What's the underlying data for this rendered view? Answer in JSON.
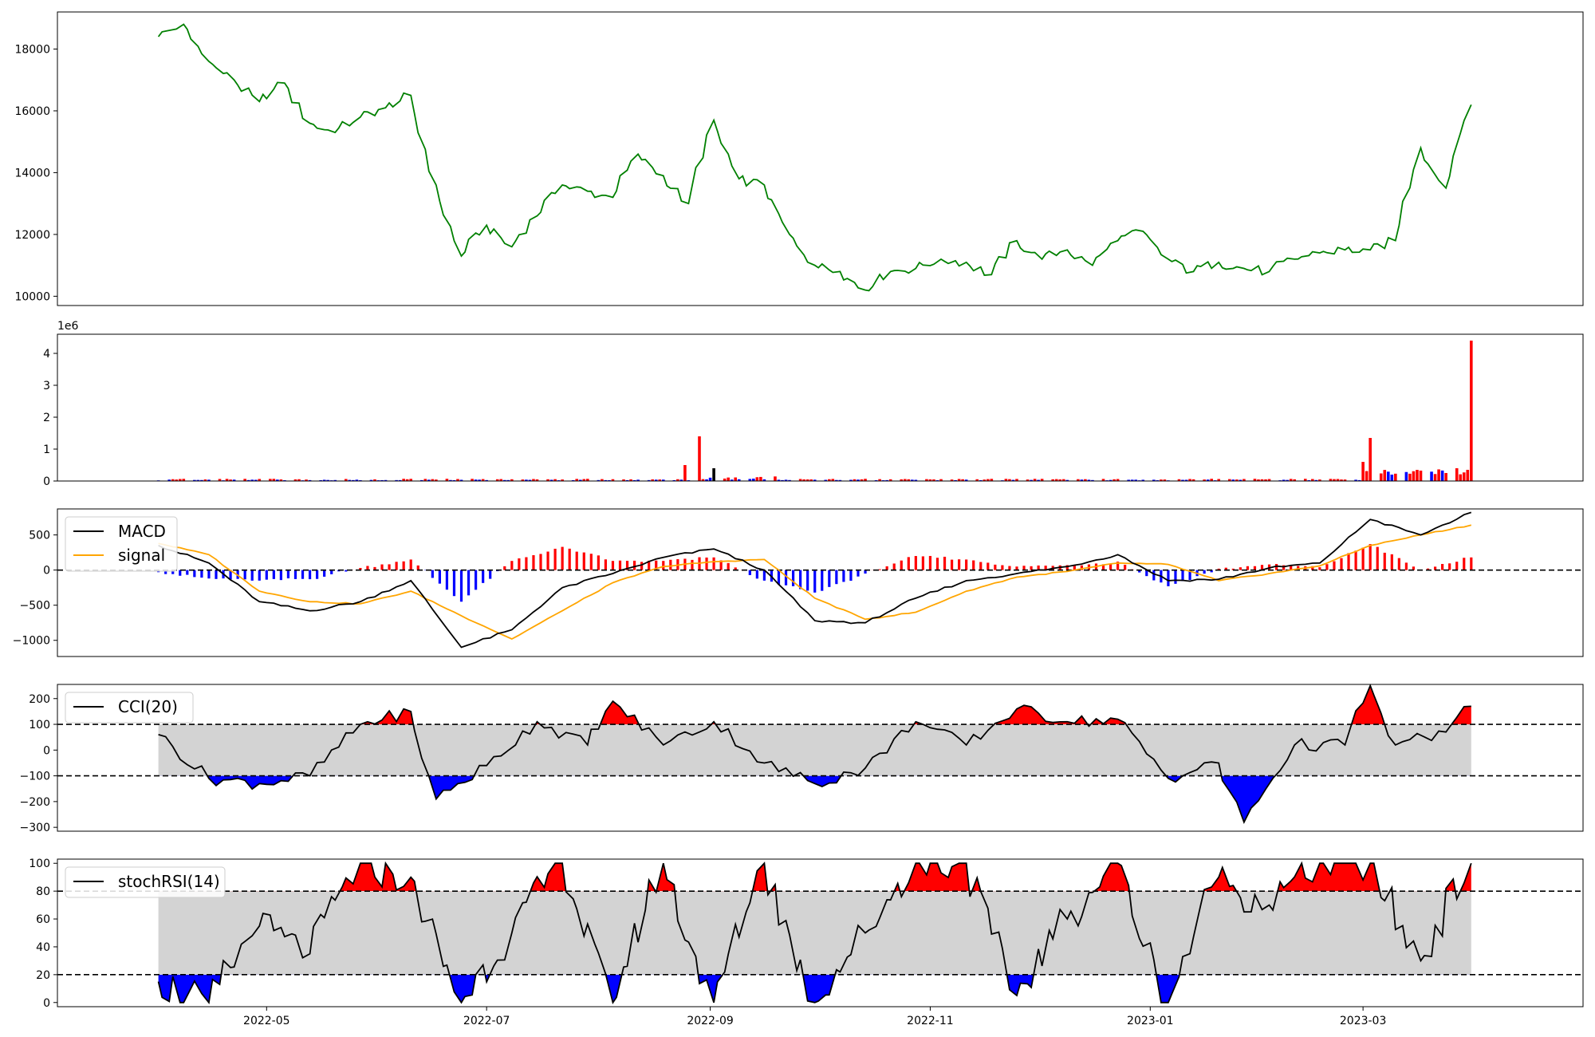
{
  "chart_data": [
    {
      "type": "line",
      "panel": "price",
      "ylim": [
        9700,
        19200
      ],
      "yticks": [
        10000,
        12000,
        14000,
        16000,
        18000
      ],
      "color": "#008000",
      "series": [
        {
          "x": [
            "2022-04-01",
            "2022-04-08",
            "2022-04-15",
            "2022-04-22",
            "2022-04-29",
            "2022-05-06",
            "2022-05-13",
            "2022-05-20",
            "2022-05-27",
            "2022-06-03",
            "2022-06-10",
            "2022-06-17",
            "2022-06-24",
            "2022-07-01",
            "2022-07-08",
            "2022-07-15",
            "2022-07-22",
            "2022-07-29",
            "2022-08-05",
            "2022-08-12",
            "2022-08-19",
            "2022-08-26",
            "2022-09-02",
            "2022-09-09",
            "2022-09-16",
            "2022-09-23",
            "2022-09-30",
            "2022-10-07",
            "2022-10-14",
            "2022-10-21",
            "2022-10-28",
            "2022-11-04",
            "2022-11-11",
            "2022-11-18",
            "2022-11-25",
            "2022-12-02",
            "2022-12-09",
            "2022-12-16",
            "2022-12-23",
            "2022-12-30",
            "2023-01-06",
            "2023-01-13",
            "2023-01-20",
            "2023-01-27",
            "2023-02-03",
            "2023-02-10",
            "2023-02-17",
            "2023-02-24",
            "2023-03-03",
            "2023-03-10",
            "2023-03-17",
            "2023-03-24",
            "2023-03-31"
          ],
          "values": [
            18400,
            18800,
            17600,
            17000,
            16300,
            16900,
            15600,
            15300,
            15800,
            16100,
            16500,
            13600,
            11300,
            12300,
            11600,
            12600,
            13600,
            13400,
            13200,
            14600,
            13900,
            13000,
            15700,
            13800,
            13600,
            12000,
            11000,
            10800,
            10200,
            10800,
            10900,
            11200,
            11100,
            10700,
            11800,
            11200,
            11500,
            11000,
            11800,
            12100,
            11200,
            10800,
            11100,
            10900,
            10800,
            11200,
            11400,
            11500,
            11500,
            11800,
            14800,
            13500,
            16200
          ]
        }
      ]
    },
    {
      "type": "bar",
      "panel": "volume",
      "offset_label": "1e6",
      "ylim": [
        0,
        4.6
      ],
      "yticks": [
        0,
        1,
        2,
        3,
        4
      ],
      "spikes": [
        {
          "x": "2022-08-25",
          "value": 0.5,
          "color": "#ff0000"
        },
        {
          "x": "2022-08-29",
          "value": 1.4,
          "color": "#ff0000"
        },
        {
          "x": "2022-09-02",
          "value": 0.4,
          "color": "#000000"
        },
        {
          "x": "2023-03-01",
          "value": 0.6,
          "color": "#ff0000"
        },
        {
          "x": "2023-03-03",
          "value": 1.35,
          "color": "#ff0000"
        },
        {
          "x": "2023-03-27",
          "value": 0.4,
          "color": "#ff0000"
        },
        {
          "x": "2023-03-31",
          "value": 4.4,
          "color": "#ff0000"
        }
      ]
    },
    {
      "type": "line",
      "panel": "macd",
      "ylim": [
        -1230,
        870
      ],
      "yticks": [
        -1000,
        -500,
        0,
        500
      ],
      "legend": [
        "MACD",
        "signal"
      ],
      "colors": {
        "macd": "#000000",
        "signal": "#ffa500",
        "hist_pos": "#ff0000",
        "hist_neg": "#0000ff"
      },
      "x": [
        "2022-04-01",
        "2022-04-15",
        "2022-04-29",
        "2022-05-13",
        "2022-05-27",
        "2022-06-10",
        "2022-06-24",
        "2022-07-08",
        "2022-07-22",
        "2022-08-05",
        "2022-08-19",
        "2022-09-02",
        "2022-09-16",
        "2022-09-30",
        "2022-10-14",
        "2022-10-28",
        "2022-11-11",
        "2022-11-25",
        "2022-12-09",
        "2022-12-23",
        "2023-01-06",
        "2023-01-20",
        "2023-02-03",
        "2023-02-17",
        "2023-03-03",
        "2023-03-17",
        "2023-03-31"
      ],
      "macd": [
        350,
        100,
        -450,
        -580,
        -450,
        -150,
        -1100,
        -850,
        -250,
        -50,
        180,
        300,
        0,
        -720,
        -750,
        -400,
        -150,
        -50,
        50,
        220,
        -150,
        -130,
        30,
        100,
        720,
        500,
        820
      ],
      "signal": [
        380,
        220,
        -300,
        -450,
        -480,
        -300,
        -650,
        -980,
        -580,
        -180,
        50,
        120,
        150,
        -400,
        -700,
        -600,
        -300,
        -100,
        -20,
        100,
        80,
        -150,
        -50,
        60,
        350,
        500,
        640
      ]
    },
    {
      "type": "line",
      "panel": "cci",
      "ylim": [
        -315,
        255
      ],
      "yticks": [
        -300,
        -200,
        -100,
        0,
        100,
        200
      ],
      "legend": [
        "CCI(20)"
      ],
      "thresholds": [
        100,
        -100
      ],
      "x": [
        "2022-04-01",
        "2022-04-15",
        "2022-04-29",
        "2022-05-13",
        "2022-05-27",
        "2022-06-10",
        "2022-06-17",
        "2022-07-01",
        "2022-07-15",
        "2022-07-29",
        "2022-08-05",
        "2022-08-19",
        "2022-09-02",
        "2022-09-16",
        "2022-09-30",
        "2022-10-14",
        "2022-10-28",
        "2022-11-11",
        "2022-11-25",
        "2022-12-09",
        "2022-12-23",
        "2023-01-06",
        "2023-01-20",
        "2023-01-27",
        "2023-02-10",
        "2023-02-24",
        "2023-03-03",
        "2023-03-10",
        "2023-03-24",
        "2023-03-31"
      ],
      "values": [
        60,
        -110,
        -130,
        -100,
        100,
        150,
        -190,
        -60,
        110,
        20,
        190,
        20,
        110,
        -50,
        -130,
        -70,
        110,
        20,
        160,
        110,
        120,
        -110,
        -50,
        -280,
        20,
        20,
        250,
        20,
        70,
        170
      ]
    },
    {
      "type": "line",
      "panel": "stochrsi",
      "ylim": [
        -3,
        103
      ],
      "yticks": [
        0,
        20,
        40,
        60,
        80,
        100
      ],
      "legend": [
        "stochRSI(14)"
      ],
      "thresholds": [
        80,
        20
      ],
      "x": [
        "2022-04-01",
        "2022-04-15",
        "2022-04-29",
        "2022-05-13",
        "2022-05-27",
        "2022-06-10",
        "2022-06-24",
        "2022-07-08",
        "2022-07-22",
        "2022-08-05",
        "2022-08-19",
        "2022-09-02",
        "2022-09-16",
        "2022-09-30",
        "2022-10-14",
        "2022-10-28",
        "2022-11-11",
        "2022-11-25",
        "2022-12-09",
        "2022-12-23",
        "2023-01-06",
        "2023-01-20",
        "2023-02-03",
        "2023-02-17",
        "2023-03-03",
        "2023-03-17",
        "2023-03-31"
      ],
      "values": [
        15,
        0,
        55,
        35,
        100,
        90,
        0,
        50,
        100,
        0,
        100,
        0,
        100,
        0,
        50,
        100,
        100,
        5,
        60,
        100,
        0,
        90,
        70,
        100,
        100,
        30,
        100
      ]
    }
  ],
  "x_axis": {
    "ticks": [
      "2022-05",
      "2022-07",
      "2022-09",
      "2022-11",
      "2023-01",
      "2023-03"
    ]
  }
}
